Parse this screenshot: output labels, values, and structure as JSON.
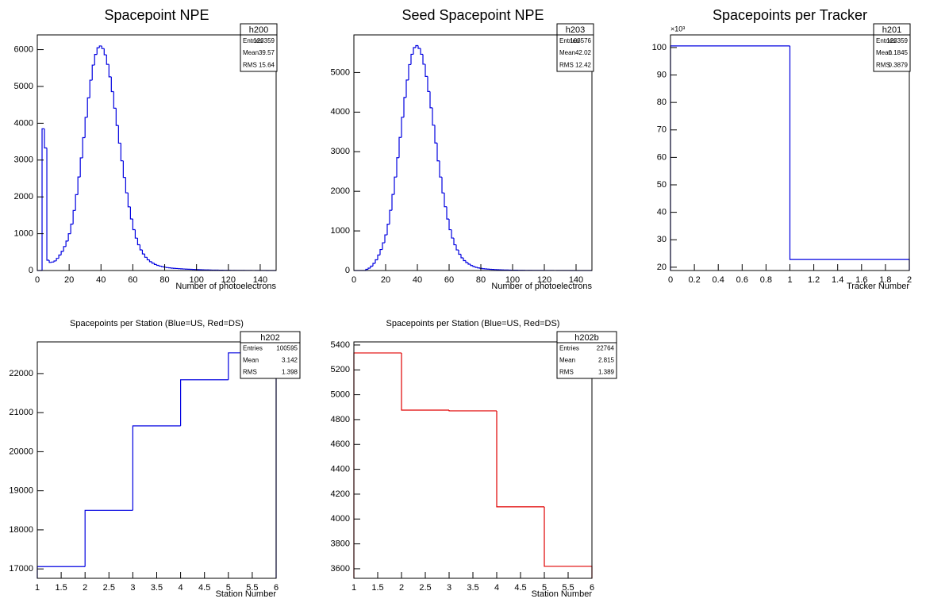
{
  "chart_data": [
    {
      "type": "histogram",
      "title": "Spacepoint NPE",
      "x_label": "Number of photoelectrons",
      "color": "#0000e0",
      "bins": [
        0,
        1.5,
        3,
        4.5,
        6,
        7.5,
        9,
        10.5,
        12,
        13.5,
        15,
        16.5,
        18,
        19.5,
        21,
        22.5,
        24,
        25.5,
        27,
        28.5,
        30,
        31.5,
        33,
        34.5,
        36,
        37.5,
        39,
        40.5,
        42,
        43.5,
        45,
        46.5,
        48,
        49.5,
        51,
        52.5,
        54,
        55.5,
        57,
        58.5,
        60,
        61.5,
        63,
        64.5,
        66,
        67.5,
        69,
        70.5,
        72,
        73.5,
        75,
        76.5,
        78,
        79.5,
        81,
        82.5,
        84,
        85.5,
        87,
        88.5,
        90,
        91.5,
        93,
        94.5,
        96,
        97.5,
        99,
        100.5,
        102,
        103.5,
        105,
        106.5,
        108,
        109.5,
        111,
        112.5,
        114,
        115.5,
        117,
        118.5,
        120,
        121.5,
        123,
        124.5,
        126,
        127.5,
        129,
        130.5,
        132,
        133.5,
        135,
        136.5,
        138,
        139.5,
        141,
        142.5,
        144,
        145.5,
        147,
        148.5,
        150
      ],
      "values": [
        0,
        0,
        3850,
        3330,
        280,
        220,
        230,
        260,
        330,
        420,
        520,
        650,
        800,
        1000,
        1260,
        1630,
        2060,
        2540,
        3060,
        3610,
        4160,
        4690,
        5170,
        5580,
        5870,
        6050,
        6100,
        6030,
        5860,
        5600,
        5260,
        4860,
        4410,
        3940,
        3460,
        2980,
        2530,
        2110,
        1730,
        1400,
        1110,
        880,
        700,
        560,
        450,
        360,
        290,
        240,
        200,
        165,
        140,
        120,
        105,
        90,
        80,
        72,
        65,
        60,
        55,
        50,
        46,
        42,
        38,
        35,
        32,
        30,
        27,
        25,
        22,
        20,
        18,
        16,
        14,
        12,
        11,
        10,
        9,
        8,
        7,
        6,
        5,
        4,
        4,
        3,
        3,
        3,
        2,
        2,
        2,
        2,
        1,
        1,
        1,
        1,
        1,
        1,
        0,
        0,
        0,
        0
      ],
      "xlim": [
        0,
        150
      ],
      "ylim": [
        0,
        6400
      ],
      "xticks": [
        0,
        20,
        40,
        60,
        80,
        100,
        120,
        140
      ],
      "yticks": [
        0,
        1000,
        2000,
        3000,
        4000,
        5000,
        6000
      ],
      "stats": {
        "name": "h200",
        "rows": [
          {
            "label": "Entries",
            "value": 123359
          },
          {
            "label": "Mean",
            "value": 39.57
          },
          {
            "label": "RMS",
            "value": 15.64
          }
        ]
      }
    },
    {
      "type": "histogram",
      "title": "Seed Spacepoint NPE",
      "x_label": "Number of photoelectrons",
      "color": "#0000e0",
      "bins": [
        0,
        1.5,
        3,
        4.5,
        6,
        7.5,
        9,
        10.5,
        12,
        13.5,
        15,
        16.5,
        18,
        19.5,
        21,
        22.5,
        24,
        25.5,
        27,
        28.5,
        30,
        31.5,
        33,
        34.5,
        36,
        37.5,
        39,
        40.5,
        42,
        43.5,
        45,
        46.5,
        48,
        49.5,
        51,
        52.5,
        54,
        55.5,
        57,
        58.5,
        60,
        61.5,
        63,
        64.5,
        66,
        67.5,
        69,
        70.5,
        72,
        73.5,
        75,
        76.5,
        78,
        79.5,
        81,
        82.5,
        84,
        85.5,
        87,
        88.5,
        90,
        91.5,
        93,
        94.5,
        96,
        97.5,
        99,
        100.5,
        102,
        103.5,
        105,
        106.5,
        108,
        109.5,
        111,
        112.5,
        114,
        115.5,
        117,
        118.5,
        120,
        121.5,
        123,
        124.5,
        126,
        127.5,
        129,
        130.5,
        132,
        133.5,
        135,
        136.5,
        138,
        139.5,
        141,
        142.5,
        144,
        145.5,
        147,
        148.5,
        150
      ],
      "values": [
        0,
        0,
        0,
        0,
        0,
        30,
        60,
        110,
        180,
        270,
        390,
        530,
        700,
        900,
        1170,
        1520,
        1920,
        2360,
        2850,
        3360,
        3870,
        4370,
        4810,
        5200,
        5460,
        5630,
        5680,
        5610,
        5460,
        5210,
        4900,
        4520,
        4110,
        3670,
        3220,
        2770,
        2360,
        1960,
        1610,
        1300,
        1030,
        820,
        650,
        520,
        410,
        320,
        250,
        200,
        160,
        125,
        100,
        80,
        65,
        55,
        45,
        40,
        35,
        30,
        27,
        24,
        21,
        18,
        16,
        14,
        12,
        10,
        9,
        8,
        7,
        6,
        5,
        5,
        4,
        4,
        4,
        3,
        3,
        3,
        3,
        2,
        2,
        2,
        2,
        2,
        1,
        1,
        1,
        1,
        1,
        1,
        1,
        0,
        0,
        0,
        0,
        0,
        0,
        0,
        0,
        0
      ],
      "xlim": [
        0,
        150
      ],
      "ylim": [
        0,
        5950
      ],
      "xticks": [
        0,
        20,
        40,
        60,
        80,
        100,
        120,
        140
      ],
      "yticks": [
        0,
        1000,
        2000,
        3000,
        4000,
        5000
      ],
      "stats": {
        "name": "h203",
        "rows": [
          {
            "label": "Entries",
            "value": 103576
          },
          {
            "label": "Mean",
            "value": 42.02
          },
          {
            "label": "RMS",
            "value": 12.42
          }
        ]
      }
    },
    {
      "type": "histogram",
      "title": "Spacepoints per Tracker",
      "x_label": "Tracker Number",
      "y_multiplier": "×10³",
      "color": "#0000e0",
      "bins": [
        0,
        1,
        2
      ],
      "values": [
        100.6,
        22.8
      ],
      "xlim": [
        0,
        2
      ],
      "ylim": [
        18.8,
        104.6
      ],
      "xticks": [
        0,
        0.2,
        0.4,
        0.6,
        0.8,
        1,
        1.2,
        1.4,
        1.6,
        1.8,
        2
      ],
      "yticks": [
        20,
        30,
        40,
        50,
        60,
        70,
        80,
        90,
        100
      ],
      "stats": {
        "name": "h201",
        "rows": [
          {
            "label": "Entries",
            "value": 123359
          },
          {
            "label": "Mean",
            "value": 0.1845
          },
          {
            "label": "RMS",
            "value": 0.3879
          }
        ]
      }
    },
    {
      "type": "histogram",
      "title": "Spacepoints per Station (Blue=US, Red=DS)",
      "x_label": "Station Number",
      "color": "#0000e0",
      "bins": [
        1,
        2,
        3,
        4,
        5,
        6
      ],
      "values": [
        17060,
        18500,
        20660,
        21840,
        22530
      ],
      "xlim": [
        1,
        6
      ],
      "ylim": [
        16760,
        22810
      ],
      "xticks": [
        1,
        1.5,
        2,
        2.5,
        3,
        3.5,
        4,
        4.5,
        5,
        5.5,
        6
      ],
      "yticks": [
        17000,
        18000,
        19000,
        20000,
        21000,
        22000
      ],
      "stats": {
        "name": "h202",
        "rows": [
          {
            "label": "Entries",
            "value": 100595
          },
          {
            "label": "Mean",
            "value": 3.142
          },
          {
            "label": "RMS",
            "value": 1.398
          }
        ]
      }
    },
    {
      "type": "histogram",
      "title": "Spacepoints per Station (Blue=US, Red=DS)",
      "x_label": "Station Number",
      "color": "#e00000",
      "bins": [
        1,
        2,
        3,
        4,
        5,
        6
      ],
      "values": [
        5336,
        4876,
        4870,
        4098,
        3619
      ],
      "xlim": [
        1,
        6
      ],
      "ylim": [
        3523,
        5425
      ],
      "xticks": [
        1,
        1.5,
        2,
        2.5,
        3,
        3.5,
        4,
        4.5,
        5,
        5.5,
        6
      ],
      "yticks": [
        3600,
        3800,
        4000,
        4200,
        4400,
        4600,
        4800,
        5000,
        5200,
        5400
      ],
      "stats": {
        "name": "h202b",
        "rows": [
          {
            "label": "Entries",
            "value": 22764
          },
          {
            "label": "Mean",
            "value": 2.815
          },
          {
            "label": "RMS",
            "value": 1.389
          }
        ]
      }
    }
  ]
}
